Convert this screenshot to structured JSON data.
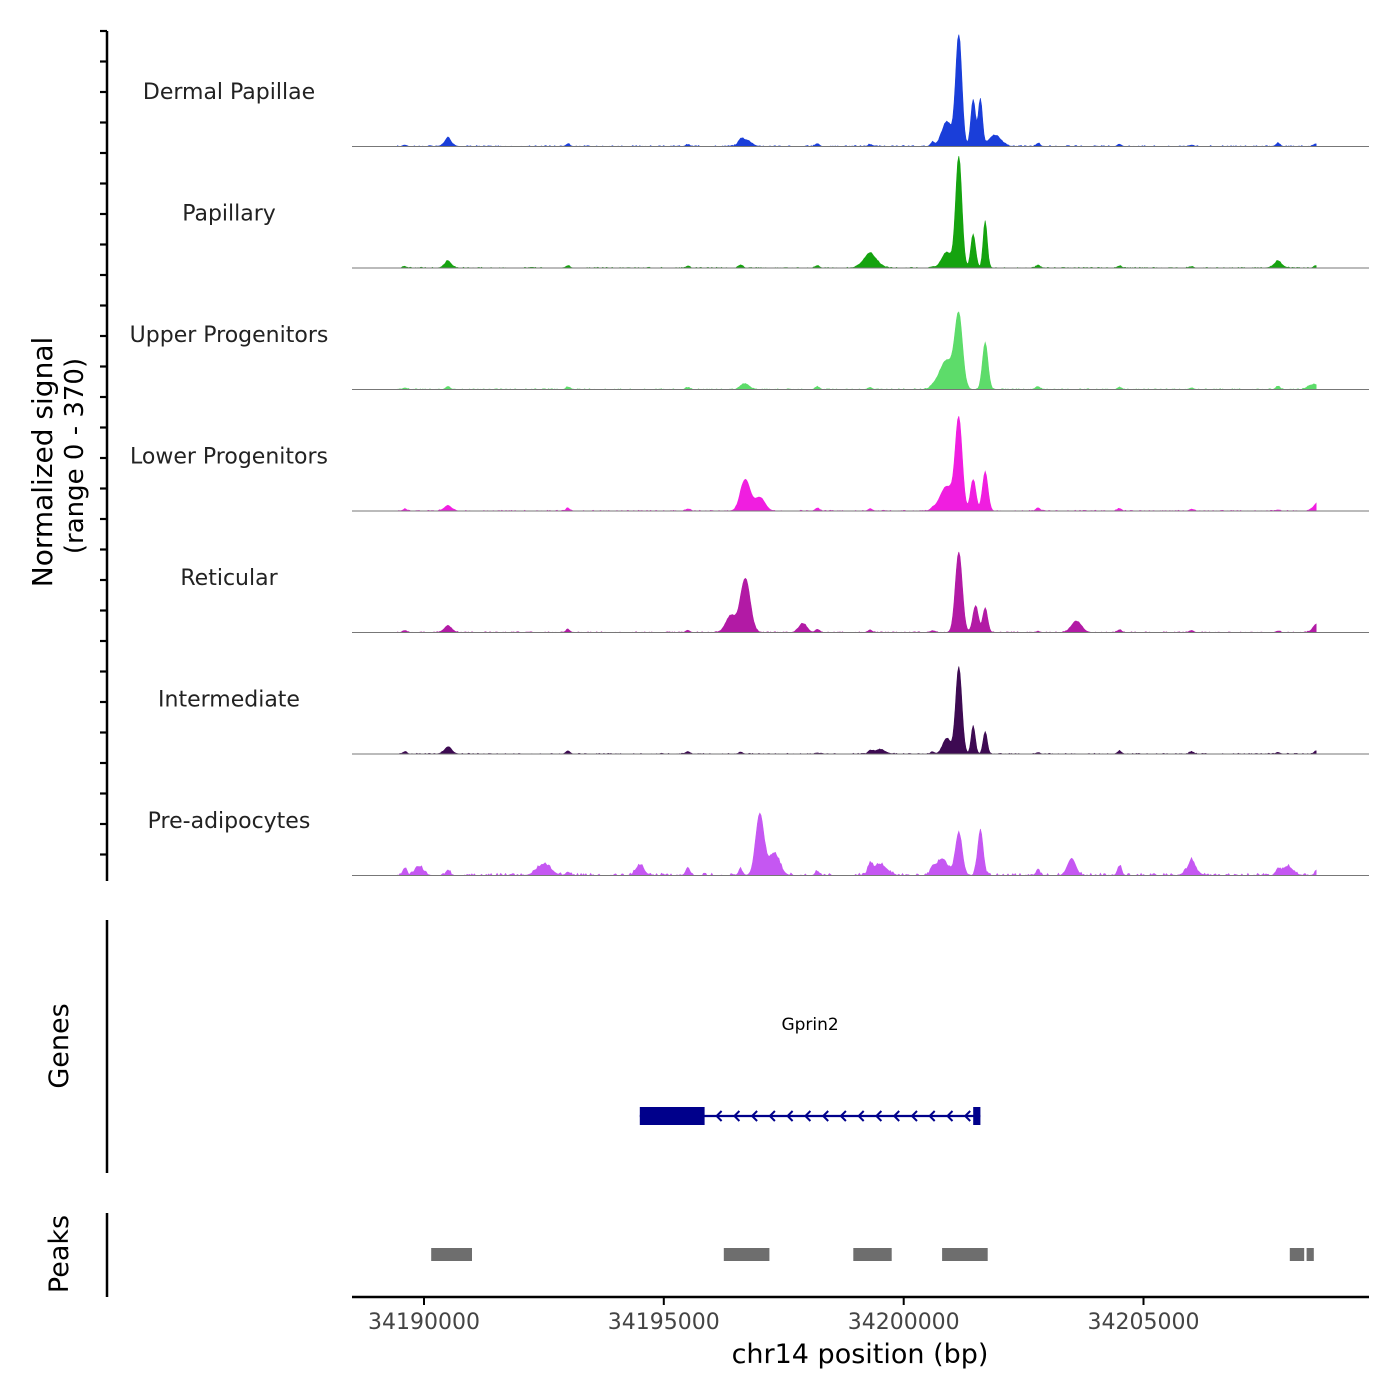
{
  "chart_data": {
    "type": "area",
    "genome": "chr14",
    "xlim": [
      34188500,
      34209700
    ],
    "ylim": [
      0,
      370
    ],
    "y_label_line1": "Normalized signal",
    "y_label_line2": "(range 0 - 370)",
    "x_label": "chr14 position (bp)",
    "x_ticks": [
      {
        "value": 34190000,
        "label": "34190000"
      },
      {
        "value": 34195000,
        "label": "34195000"
      },
      {
        "value": 34200000,
        "label": "34200000"
      },
      {
        "value": 34205000,
        "label": "34205000"
      }
    ],
    "genes_label": "Genes",
    "peaks_label": "Peaks",
    "background_peaks": [
      34189600,
      34190500,
      34193000,
      34195500,
      34196600,
      34198200,
      34199300,
      34200600,
      34202800,
      34204500,
      34206000,
      34207800,
      34208600
    ],
    "tracks": [
      {
        "name": "Dermal Papillae",
        "color": "#1a3ed9",
        "peaks": [
          {
            "pos": 34201150,
            "h": 1.0,
            "w": 90
          },
          {
            "pos": 34201450,
            "h": 0.42,
            "w": 70
          },
          {
            "pos": 34201600,
            "h": 0.42,
            "w": 60
          },
          {
            "pos": 34200900,
            "h": 0.22,
            "w": 150
          },
          {
            "pos": 34201900,
            "h": 0.1,
            "w": 180
          },
          {
            "pos": 34196700,
            "h": 0.06,
            "w": 160
          },
          {
            "pos": 34190500,
            "h": 0.05,
            "w": 120
          }
        ],
        "noise": 0.025
      },
      {
        "name": "Papillary",
        "color": "#15a30f",
        "peaks": [
          {
            "pos": 34201150,
            "h": 1.0,
            "w": 90
          },
          {
            "pos": 34201700,
            "h": 0.42,
            "w": 60
          },
          {
            "pos": 34201450,
            "h": 0.3,
            "w": 70
          },
          {
            "pos": 34200900,
            "h": 0.14,
            "w": 150
          },
          {
            "pos": 34199300,
            "h": 0.12,
            "w": 200
          },
          {
            "pos": 34207800,
            "h": 0.04,
            "w": 140
          },
          {
            "pos": 34190500,
            "h": 0.04,
            "w": 120
          }
        ],
        "noise": 0.02
      },
      {
        "name": "Upper Progenitors",
        "color": "#5ddc6a",
        "peaks": [
          {
            "pos": 34201150,
            "h": 0.62,
            "w": 110
          },
          {
            "pos": 34201700,
            "h": 0.42,
            "w": 80
          },
          {
            "pos": 34200900,
            "h": 0.26,
            "w": 220
          },
          {
            "pos": 34196700,
            "h": 0.05,
            "w": 120
          },
          {
            "pos": 34208500,
            "h": 0.04,
            "w": 120
          }
        ],
        "noise": 0.02
      },
      {
        "name": "Lower Progenitors",
        "color": "#f01ee0",
        "peaks": [
          {
            "pos": 34201150,
            "h": 0.8,
            "w": 100
          },
          {
            "pos": 34201700,
            "h": 0.35,
            "w": 80
          },
          {
            "pos": 34201450,
            "h": 0.28,
            "w": 80
          },
          {
            "pos": 34200900,
            "h": 0.22,
            "w": 200
          },
          {
            "pos": 34196700,
            "h": 0.28,
            "w": 140
          },
          {
            "pos": 34197000,
            "h": 0.12,
            "w": 150
          },
          {
            "pos": 34190500,
            "h": 0.04,
            "w": 120
          },
          {
            "pos": 34208600,
            "h": 0.04,
            "w": 120
          }
        ],
        "noise": 0.02
      },
      {
        "name": "Reticular",
        "color": "#b21aa5",
        "peaks": [
          {
            "pos": 34201150,
            "h": 0.72,
            "w": 100
          },
          {
            "pos": 34201500,
            "h": 0.24,
            "w": 80
          },
          {
            "pos": 34201700,
            "h": 0.22,
            "w": 70
          },
          {
            "pos": 34196700,
            "h": 0.48,
            "w": 140
          },
          {
            "pos": 34196400,
            "h": 0.15,
            "w": 150
          },
          {
            "pos": 34203600,
            "h": 0.1,
            "w": 150
          },
          {
            "pos": 34197900,
            "h": 0.08,
            "w": 120
          },
          {
            "pos": 34190500,
            "h": 0.05,
            "w": 120
          },
          {
            "pos": 34208600,
            "h": 0.05,
            "w": 120
          }
        ],
        "noise": 0.02
      },
      {
        "name": "Intermediate",
        "color": "#3d0a52",
        "peaks": [
          {
            "pos": 34201150,
            "h": 0.78,
            "w": 90
          },
          {
            "pos": 34201450,
            "h": 0.25,
            "w": 60
          },
          {
            "pos": 34201700,
            "h": 0.2,
            "w": 60
          },
          {
            "pos": 34200900,
            "h": 0.14,
            "w": 120
          },
          {
            "pos": 34190500,
            "h": 0.05,
            "w": 120
          },
          {
            "pos": 34199500,
            "h": 0.04,
            "w": 160
          }
        ],
        "noise": 0.02
      },
      {
        "name": "Pre-adipocytes",
        "color": "#c557f2",
        "peaks": [
          {
            "pos": 34197000,
            "h": 0.55,
            "w": 120
          },
          {
            "pos": 34197300,
            "h": 0.2,
            "w": 160
          },
          {
            "pos": 34201150,
            "h": 0.38,
            "w": 100
          },
          {
            "pos": 34201600,
            "h": 0.4,
            "w": 80
          },
          {
            "pos": 34200800,
            "h": 0.15,
            "w": 160
          },
          {
            "pos": 34203500,
            "h": 0.15,
            "w": 120
          },
          {
            "pos": 34199500,
            "h": 0.1,
            "w": 200
          },
          {
            "pos": 34192500,
            "h": 0.1,
            "w": 200
          },
          {
            "pos": 34189900,
            "h": 0.08,
            "w": 120
          },
          {
            "pos": 34194500,
            "h": 0.09,
            "w": 120
          },
          {
            "pos": 34206000,
            "h": 0.08,
            "w": 160
          },
          {
            "pos": 34208000,
            "h": 0.08,
            "w": 160
          }
        ],
        "noise": 0.06
      }
    ],
    "gene": {
      "name": "Gprin2",
      "color": "#00008b",
      "strand": "-",
      "start": 34194500,
      "end": 34201600,
      "exons": [
        {
          "start": 34194500,
          "end": 34195850
        },
        {
          "start": 34201450,
          "end": 34201600
        }
      ]
    },
    "peaks": [
      {
        "start": 34190150,
        "end": 34191000
      },
      {
        "start": 34196250,
        "end": 34197200
      },
      {
        "start": 34198950,
        "end": 34199750
      },
      {
        "start": 34200800,
        "end": 34201750
      },
      {
        "start": 34208050,
        "end": 34208350
      },
      {
        "start": 34208400,
        "end": 34208550
      }
    ]
  }
}
